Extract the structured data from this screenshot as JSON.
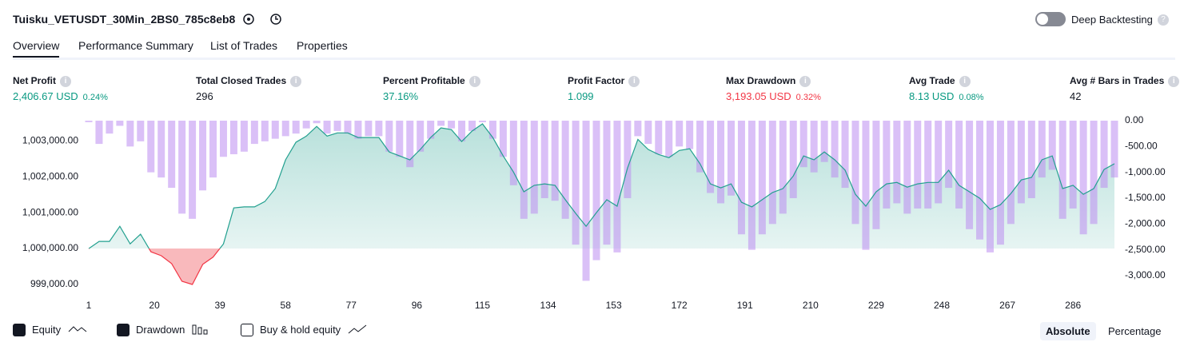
{
  "header": {
    "title": "Tuisku_VETUSDT_30Min_2BS0_785c8eb8",
    "deep_backtesting": "Deep Backtesting"
  },
  "tabs": {
    "items": [
      "Overview",
      "Performance Summary",
      "List of Trades",
      "Properties"
    ],
    "active": 0
  },
  "metrics": [
    {
      "label": "Net Profit",
      "value": "2,406.67 USD",
      "sub": "0.24%",
      "color": "#089981"
    },
    {
      "label": "Total Closed Trades",
      "value": "296",
      "color": "#131722"
    },
    {
      "label": "Percent Profitable",
      "value": "37.16%",
      "color": "#089981"
    },
    {
      "label": "Profit Factor",
      "value": "1.099",
      "color": "#089981"
    },
    {
      "label": "Max Drawdown",
      "value": "3,193.05 USD",
      "sub": "0.32%",
      "color": "#f23645"
    },
    {
      "label": "Avg Trade",
      "value": "8.13 USD",
      "sub": "0.08%",
      "color": "#089981"
    },
    {
      "label": "Avg # Bars in Trades",
      "value": "42",
      "color": "#131722"
    }
  ],
  "controls": {
    "buy_hold": "Buy & hold equity",
    "modes": [
      "Absolute",
      "Percentage"
    ],
    "active_mode": 0
  },
  "chart_data": {
    "type": "equity_drawdown",
    "x": [
      1,
      4,
      7,
      10,
      13,
      16,
      19,
      22,
      25,
      28,
      31,
      34,
      37,
      40,
      43,
      46,
      49,
      52,
      55,
      58,
      61,
      64,
      67,
      70,
      73,
      76,
      79,
      82,
      85,
      88,
      91,
      94,
      97,
      100,
      103,
      106,
      109,
      112,
      115,
      118,
      121,
      124,
      127,
      130,
      133,
      136,
      139,
      142,
      145,
      148,
      151,
      154,
      157,
      160,
      163,
      166,
      169,
      172,
      175,
      178,
      181,
      184,
      187,
      190,
      193,
      196,
      199,
      202,
      205,
      208,
      211,
      214,
      217,
      220,
      223,
      226,
      229,
      232,
      235,
      238,
      241,
      244,
      247,
      250,
      253,
      256,
      259,
      262,
      265,
      268,
      271,
      274,
      277,
      280,
      283,
      286,
      289,
      292,
      295,
      298
    ],
    "series": [
      {
        "name": "Equity",
        "color": "#22a08f",
        "loss_color": "#f7a8ab",
        "values": [
          1000000,
          1000200,
          1000200,
          1000620,
          1000130,
          1000400,
          999910,
          999800,
          999580,
          999090,
          999000,
          999560,
          999760,
          1000130,
          1001130,
          1001160,
          1001160,
          1001310,
          1001670,
          1002470,
          1002960,
          1003130,
          1003400,
          1003130,
          1003220,
          1003220,
          1003090,
          1003090,
          1003090,
          1002690,
          1002580,
          1002470,
          1002760,
          1003090,
          1003360,
          1003310,
          1002980,
          1003270,
          1003470,
          1003090,
          1002580,
          1002130,
          1001580,
          1001760,
          1001800,
          1001760,
          1001360,
          1000980,
          1000620,
          1001000,
          1001360,
          1001180,
          1002240,
          1003040,
          1002760,
          1002620,
          1002530,
          1002730,
          1002780,
          1002360,
          1001800,
          1001690,
          1001800,
          1001290,
          1001160,
          1001360,
          1001560,
          1001670,
          1002020,
          1002580,
          1002470,
          1002690,
          1002470,
          1002180,
          1001510,
          1001180,
          1001580,
          1001800,
          1001840,
          1001710,
          1001800,
          1001840,
          1001840,
          1002180,
          1001760,
          1001580,
          1001400,
          1001090,
          1001220,
          1001530,
          1001910,
          1001980,
          1002470,
          1002580,
          1001670,
          1001760,
          1001510,
          1001670,
          1002200,
          1002360
        ]
      },
      {
        "name": "Drawdown",
        "color": "#bb8cf0",
        "axis": "y2",
        "values": [
          -30,
          -450,
          -250,
          -100,
          -500,
          -400,
          -1000,
          -1100,
          -1300,
          -1800,
          -1900,
          -1350,
          -1100,
          -700,
          -650,
          -600,
          -450,
          -400,
          -350,
          -300,
          -250,
          -150,
          -50,
          -250,
          -200,
          -250,
          -350,
          -300,
          -300,
          -600,
          -700,
          -900,
          -600,
          -350,
          -100,
          -150,
          -400,
          -200,
          -30,
          -350,
          -700,
          -1250,
          -1900,
          -1800,
          -1500,
          -1550,
          -1900,
          -2400,
          -3100,
          -2700,
          -2400,
          -2550,
          -1500,
          -300,
          -450,
          -650,
          -700,
          -500,
          -550,
          -1000,
          -1400,
          -1600,
          -1450,
          -2200,
          -2500,
          -2200,
          -2000,
          -1800,
          -1500,
          -900,
          -1000,
          -800,
          -1100,
          -1300,
          -2000,
          -2500,
          -2100,
          -1700,
          -1600,
          -1800,
          -1700,
          -1700,
          -1600,
          -1300,
          -1700,
          -2100,
          -2300,
          -2550,
          -2400,
          -2000,
          -1600,
          -1500,
          -1100,
          -950,
          -1900,
          -1700,
          -2200,
          -2000,
          -1300,
          -1100
        ]
      }
    ],
    "xlim": [
      1,
      298
    ],
    "xticks": [
      1,
      20,
      39,
      58,
      77,
      96,
      115,
      134,
      153,
      172,
      191,
      210,
      229,
      248,
      267,
      286
    ],
    "ylim": [
      998800,
      1003560
    ],
    "yticks": [
      {
        "value": 999000,
        "label": "999,000.00"
      },
      {
        "value": 1000000,
        "label": "1,000,000.00"
      },
      {
        "value": 1001000,
        "label": "1,001,000.00"
      },
      {
        "value": 1002000,
        "label": "1,002,000.00"
      },
      {
        "value": 1003000,
        "label": "1,003,000.00"
      }
    ],
    "y2lim": [
      -3310,
      0
    ],
    "y2ticks": [
      {
        "value": 0,
        "label": "0.00"
      },
      {
        "value": -500,
        "label": "-500.00"
      },
      {
        "value": -1000,
        "label": "-1,000.00"
      },
      {
        "value": -1500,
        "label": "-1,500.00"
      },
      {
        "value": -2000,
        "label": "-2,000.00"
      },
      {
        "value": -2500,
        "label": "-2,500.00"
      },
      {
        "value": -3000,
        "label": "-3,000.00"
      }
    ]
  }
}
